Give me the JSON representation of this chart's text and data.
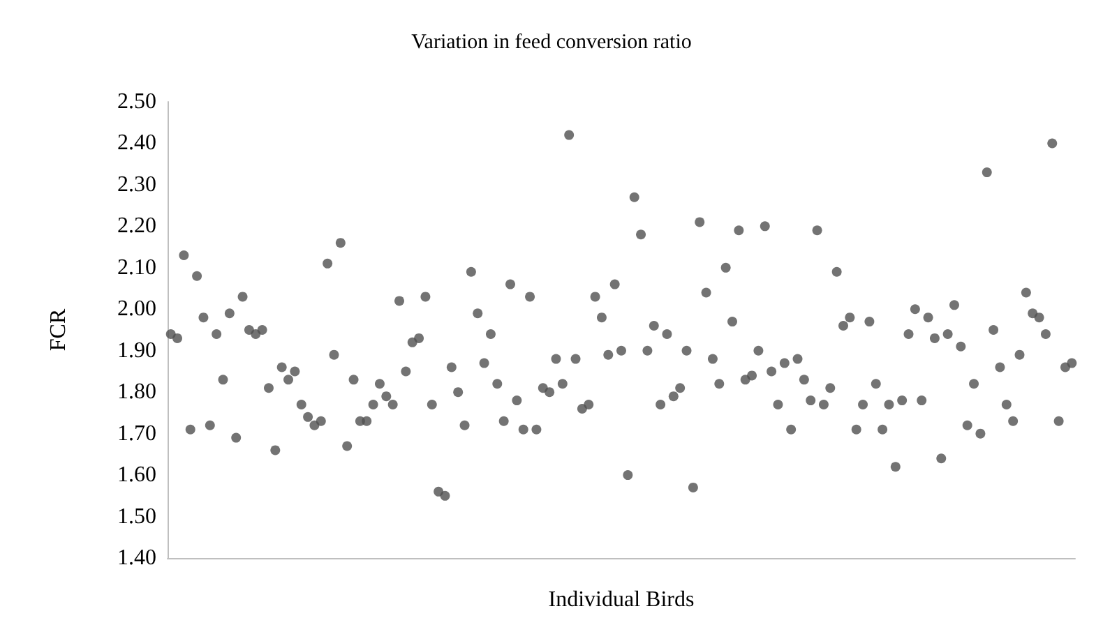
{
  "chart_data": {
    "type": "scatter",
    "title": "Variation in feed conversion ratio",
    "xlabel": "Individual Birds",
    "ylabel": "FCR",
    "categories": [
      null,
      null,
      null,
      null,
      null,
      null,
      null,
      null,
      null,
      null,
      null,
      null,
      null,
      null,
      null,
      null,
      null,
      null,
      null,
      null,
      null,
      null,
      null,
      null,
      null,
      null,
      null,
      null,
      null,
      null,
      null,
      null,
      null,
      null,
      null,
      null,
      null,
      null,
      null,
      null,
      null,
      null,
      null,
      null,
      null,
      null,
      null,
      null,
      null,
      null,
      null,
      null,
      null,
      null,
      null,
      null,
      null,
      null,
      null,
      null,
      null,
      null,
      null,
      null,
      null,
      null,
      null,
      null,
      null,
      null,
      null,
      null,
      null,
      null,
      null,
      null,
      null,
      null,
      null,
      null,
      null,
      null,
      null,
      null,
      null,
      null,
      null,
      null,
      null,
      null,
      null,
      null,
      null,
      null,
      null,
      null,
      null,
      null,
      null,
      null,
      null,
      null,
      null,
      null,
      null,
      null,
      null,
      null,
      null,
      null,
      null,
      null,
      null,
      null,
      null,
      null,
      null,
      null,
      null,
      null,
      null,
      null,
      null,
      null,
      null,
      null,
      null,
      null,
      null,
      null,
      null,
      null,
      null,
      null,
      null,
      null,
      null,
      null,
      null
    ],
    "series": [
      {
        "color": "#505050",
        "values": [
          1.94,
          1.93,
          2.13,
          1.71,
          2.08,
          1.98,
          1.72,
          1.94,
          1.83,
          1.99,
          1.69,
          2.03,
          1.95,
          1.94,
          1.95,
          1.81,
          1.66,
          1.86,
          1.83,
          1.85,
          1.77,
          1.74,
          1.72,
          1.73,
          2.11,
          1.89,
          2.16,
          1.67,
          1.83,
          1.73,
          1.73,
          1.77,
          1.82,
          1.79,
          1.77,
          2.02,
          1.85,
          1.92,
          1.93,
          2.03,
          1.77,
          1.56,
          1.55,
          1.86,
          1.8,
          1.72,
          2.09,
          1.99,
          1.87,
          1.94,
          1.82,
          1.73,
          2.06,
          1.78,
          1.71,
          2.03,
          1.71,
          1.81,
          1.8,
          1.88,
          1.82,
          2.42,
          1.88,
          1.76,
          1.77,
          2.03,
          1.98,
          1.89,
          2.06,
          1.9,
          1.6,
          2.27,
          2.18,
          1.9,
          1.96,
          1.77,
          1.94,
          1.79,
          1.81,
          1.9,
          1.57,
          2.21,
          2.04,
          1.88,
          1.82,
          2.1,
          1.97,
          2.19,
          1.83,
          1.84,
          1.9,
          2.2,
          1.85,
          1.77,
          1.87,
          1.71,
          1.88,
          1.83,
          1.78,
          2.19,
          1.77,
          1.81,
          2.09,
          1.96,
          1.98,
          1.71,
          1.77,
          1.97,
          1.82,
          1.71,
          1.77,
          1.62,
          1.78,
          1.94,
          2.0,
          1.78,
          1.98,
          1.93,
          1.64,
          1.94,
          2.01,
          1.91,
          1.72,
          1.82,
          1.7,
          2.33,
          1.95,
          1.86,
          1.77,
          1.73,
          1.89,
          2.04,
          1.99,
          1.98,
          1.94,
          2.4,
          1.73,
          1.86,
          1.87
        ]
      }
    ],
    "ylim": [
      1.4,
      2.5
    ],
    "yticks": [
      {
        "value": 1.4,
        "label": "1.40"
      },
      {
        "value": 1.5,
        "label": "1.50"
      },
      {
        "value": 1.6,
        "label": "1.60"
      },
      {
        "value": 1.7,
        "label": "1.70"
      },
      {
        "value": 1.8,
        "label": "1.80"
      },
      {
        "value": 1.9,
        "label": "1.90"
      },
      {
        "value": 2.0,
        "label": "2.00"
      },
      {
        "value": 2.1,
        "label": "2.10"
      },
      {
        "value": 2.2,
        "label": "2.20"
      },
      {
        "value": 2.3,
        "label": "2.30"
      },
      {
        "value": 2.4,
        "label": "2.40"
      },
      {
        "value": 2.5,
        "label": "2.50"
      }
    ],
    "grid": false,
    "marker": "circle"
  }
}
